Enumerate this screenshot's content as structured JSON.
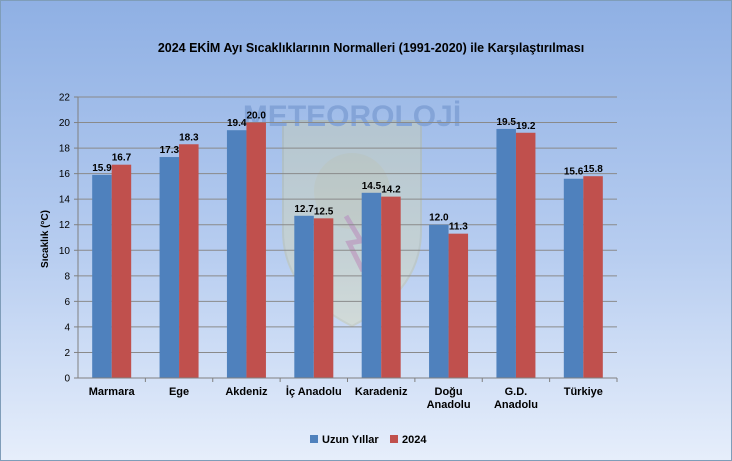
{
  "chart_data": {
    "type": "bar",
    "title": "2024 EKİM Ayı Sıcaklıklarının Normalleri (1991-2020) ile Karşılaştırılması",
    "ylabel": "Sıcaklık (°C)",
    "xlabel": "",
    "ylim": [
      0,
      22
    ],
    "ytick_step": 2,
    "grid": true,
    "legend_position": "bottom",
    "watermark": "METEOROLOJİ",
    "categories": [
      [
        "Marmara"
      ],
      [
        "Ege"
      ],
      [
        "Akdeniz"
      ],
      [
        "İç Anadolu"
      ],
      [
        "Karadeniz"
      ],
      [
        "Doğu",
        "Anadolu"
      ],
      [
        "G.D.",
        "Anadolu"
      ],
      [
        "Türkiye"
      ]
    ],
    "series": [
      {
        "name": "Uzun Yıllar",
        "color": "#4f81bd",
        "values": [
          15.9,
          17.3,
          19.4,
          12.7,
          14.5,
          12.0,
          19.5,
          15.6
        ]
      },
      {
        "name": "2024",
        "color": "#c0504d",
        "values": [
          16.7,
          18.3,
          20.0,
          12.5,
          14.2,
          11.3,
          19.2,
          15.8
        ]
      }
    ]
  }
}
